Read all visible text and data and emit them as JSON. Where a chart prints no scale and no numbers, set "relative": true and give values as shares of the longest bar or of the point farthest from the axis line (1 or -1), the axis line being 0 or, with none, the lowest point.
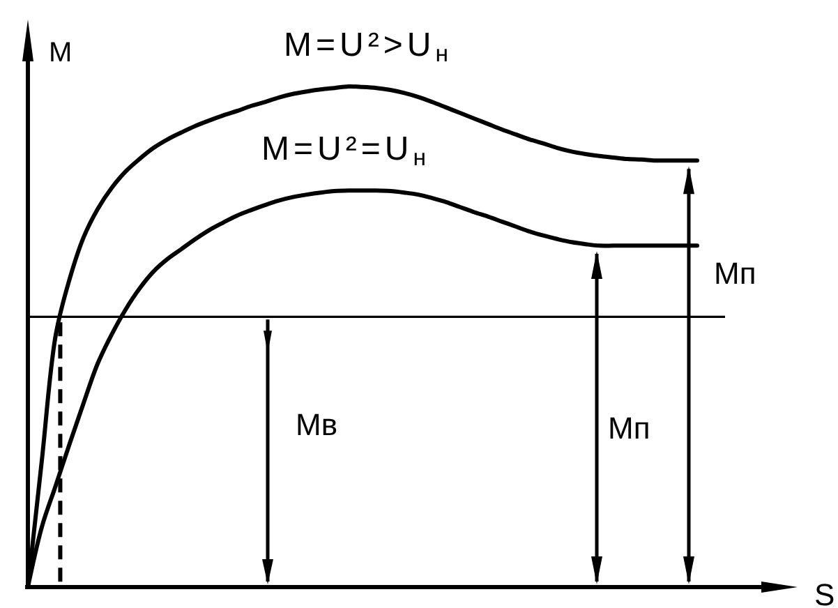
{
  "chart_data": {
    "type": "line",
    "relative": true,
    "xlabel": "S",
    "ylabel": "M",
    "categories": [
      null,
      null,
      null,
      null,
      null,
      null,
      null,
      null,
      null,
      null,
      null,
      null,
      null,
      null,
      null,
      null,
      null,
      null,
      null,
      null,
      null,
      null,
      null,
      null,
      null,
      null,
      null,
      null,
      null,
      null,
      null,
      null,
      null,
      null,
      null,
      null,
      null,
      null,
      null,
      null,
      null,
      null,
      null,
      null,
      null,
      null,
      null,
      null,
      null,
      null,
      null,
      null,
      null,
      null,
      null
    ],
    "series": [
      {
        "name": "M=U²>U$_{н}$",
        "color": "#000000",
        "values": [
          0,
          0.253,
          0.504,
          0.616,
          0.699,
          0.755,
          0.797,
          0.83,
          0.855,
          0.877,
          0.894,
          0.908,
          0.921,
          0.932,
          0.942,
          0.951,
          0.961,
          0.969,
          0.978,
          0.985,
          0.99,
          0.994,
          0.997,
          1.0,
          0.999,
          0.997,
          0.993,
          0.987,
          0.979,
          0.969,
          0.958,
          0.947,
          0.936,
          0.925,
          0.914,
          0.904,
          0.894,
          0.886,
          0.877,
          0.87,
          0.865,
          0.861,
          0.858,
          0.855,
          0.854,
          0.852,
          0.852,
          0.852,
          0.852,
          null,
          null,
          null,
          null,
          null,
          null
        ]
      },
      {
        "name": "M=U²=U$_{н}$",
        "color": "#000000",
        "values": [
          0,
          0.12,
          0.203,
          0.287,
          0.368,
          0.446,
          0.504,
          0.554,
          0.596,
          0.63,
          0.655,
          0.675,
          0.695,
          0.713,
          0.728,
          0.742,
          0.753,
          0.763,
          0.772,
          0.779,
          0.784,
          0.788,
          0.791,
          0.792,
          0.792,
          0.792,
          0.791,
          0.788,
          0.784,
          0.777,
          0.769,
          0.759,
          0.749,
          0.74,
          0.73,
          0.72,
          0.71,
          0.702,
          0.695,
          0.689,
          0.685,
          0.682,
          0.682,
          0.682,
          0.682,
          0.682,
          0.682,
          0.682,
          0.682,
          null,
          null,
          null,
          null,
          null,
          null
        ]
      }
    ],
    "ref_lines": [
      {
        "axis": "y",
        "value": 0.54,
        "label": "Mв"
      }
    ],
    "annotations": [
      "Mп",
      "Mп"
    ]
  }
}
